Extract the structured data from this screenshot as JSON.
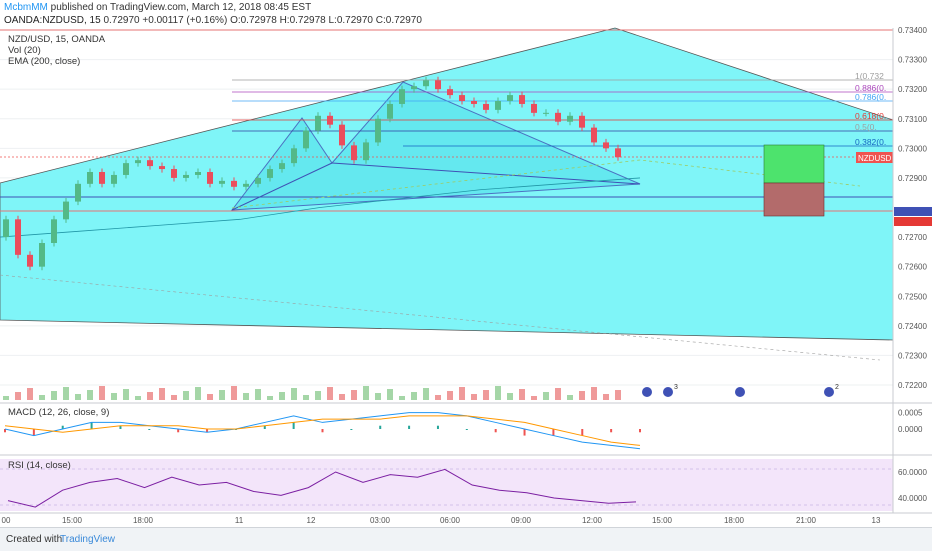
{
  "header": {
    "author": "McbmMM",
    "published": "published on TradingView.com, March 12, 2018 08:45 EST",
    "symbol_line": "OANDA:NZDUSD, 15",
    "change": "0.72970 +0.00117 (+0.16%)",
    "ohlc_o": "O:0.72978",
    "ohlc_h": "H:0.72978",
    "ohlc_l": "L:0.72970",
    "ohlc_c": "C:0.72970"
  },
  "main_labels": {
    "title": "NZD/USD, 15, OANDA",
    "vol": "Vol (20)",
    "ema": "EMA (200, close)"
  },
  "macd_label": "MACD (12, 26, close, 9)",
  "rsi_label": "RSI (14, close)",
  "price_axis": [
    "0.73400",
    "0.73300",
    "0.73200",
    "0.73100",
    "0.73000",
    "0.72900",
    "0.72789",
    "0.72789",
    "0.72700",
    "0.72600",
    "0.72500",
    "0.72400",
    "0.72300",
    "0.72200"
  ],
  "macd_axis": [
    "0.0005",
    "0.0000"
  ],
  "rsi_axis": [
    "60.0000",
    "40.0000"
  ],
  "time_axis": [
    "00",
    "15:00",
    "18:00",
    "11",
    "12",
    "03:00",
    "06:00",
    "09:00",
    "12:00",
    "15:00",
    "18:00",
    "21:00",
    "13"
  ],
  "symbol_badge": "NZDUSD",
  "fib_labels": [
    "1(0.732",
    "0.886(0.",
    "0.786(0.",
    "0.618(0.",
    "0.5(0.",
    "0.382(0."
  ],
  "event_badges": [
    "3",
    "2"
  ],
  "footer": {
    "created_with": "Created with",
    "brand": "TradingView"
  },
  "colors": {
    "pattern_fill": "#7ff5f8",
    "bull": "#53b987",
    "bear": "#eb4d5c",
    "long_target": "#4de36d",
    "long_stop": "#b36b6b"
  },
  "chart_data": [
    {
      "type": "candlestick",
      "title": "NZD/USD, 15, OANDA",
      "series": [
        {
          "name": "NZD/USD",
          "close": [
            0.7276,
            0.7264,
            0.726,
            0.7268,
            0.7276,
            0.7282,
            0.7288,
            0.7292,
            0.7288,
            0.7291,
            0.7295,
            0.7296,
            0.7294,
            0.7293,
            0.729,
            0.7291,
            0.7292,
            0.7288,
            0.7289,
            0.7287,
            0.7288,
            0.729,
            0.7293,
            0.7295,
            0.73,
            0.7306,
            0.7311,
            0.7308,
            0.7301,
            0.7296,
            0.7302,
            0.731,
            0.7315,
            0.732,
            0.7321,
            0.7323,
            0.732,
            0.7318,
            0.7316,
            0.7315,
            0.7313,
            0.7316,
            0.7318,
            0.7315,
            0.7312,
            0.7312,
            0.7309,
            0.7311,
            0.7307,
            0.7302,
            0.73,
            0.7297
          ]
        },
        {
          "name": "EMA (200, close)",
          "values": [
            0.727,
            0.7272,
            0.7274,
            0.7276,
            0.728,
            0.7283,
            0.7286,
            0.7288,
            0.729
          ]
        }
      ],
      "ylim": [
        0.722,
        0.734
      ],
      "levels": {
        "fib_1": 0.7323,
        "fib_886": 0.7319,
        "fib_786": 0.7316,
        "fib_618": 0.731,
        "fib_5": 0.7306,
        "fib_382": 0.7301,
        "pivot": 0.72789
      }
    },
    {
      "type": "line",
      "title": "MACD (12, 26, close, 9)",
      "series": [
        {
          "name": "MACD",
          "values": [
            0.0,
            -0.0002,
            0.0,
            0.0002,
            0.0002,
            0.0001,
            0.0,
            -0.0001,
            0.0,
            0.0002,
            0.0004,
            0.0002,
            0.0003,
            0.0004,
            0.0005,
            0.0005,
            0.0004,
            0.0002,
            0.0,
            -0.0002,
            -0.0004,
            -0.0005,
            -0.0006
          ]
        },
        {
          "name": "Signal",
          "values": [
            0.0001,
            0.0,
            -0.0001,
            0.0,
            0.0001,
            0.0001,
            0.0001,
            0.0,
            0.0,
            0.0001,
            0.0002,
            0.0003,
            0.0003,
            0.0003,
            0.0004,
            0.0004,
            0.0004,
            0.0003,
            0.0002,
            0.0,
            -0.0002,
            -0.0004,
            -0.0005
          ]
        }
      ],
      "ylim": [
        -0.0007,
        0.0007
      ]
    },
    {
      "type": "line",
      "title": "RSI (14, close)",
      "series": [
        {
          "name": "RSI",
          "values": [
            38,
            33,
            46,
            52,
            55,
            48,
            56,
            50,
            52,
            45,
            42,
            48,
            60,
            52,
            58,
            56,
            62,
            50,
            46,
            44,
            40,
            38,
            36,
            37
          ]
        }
      ],
      "ylim": [
        30,
        70
      ]
    }
  ]
}
